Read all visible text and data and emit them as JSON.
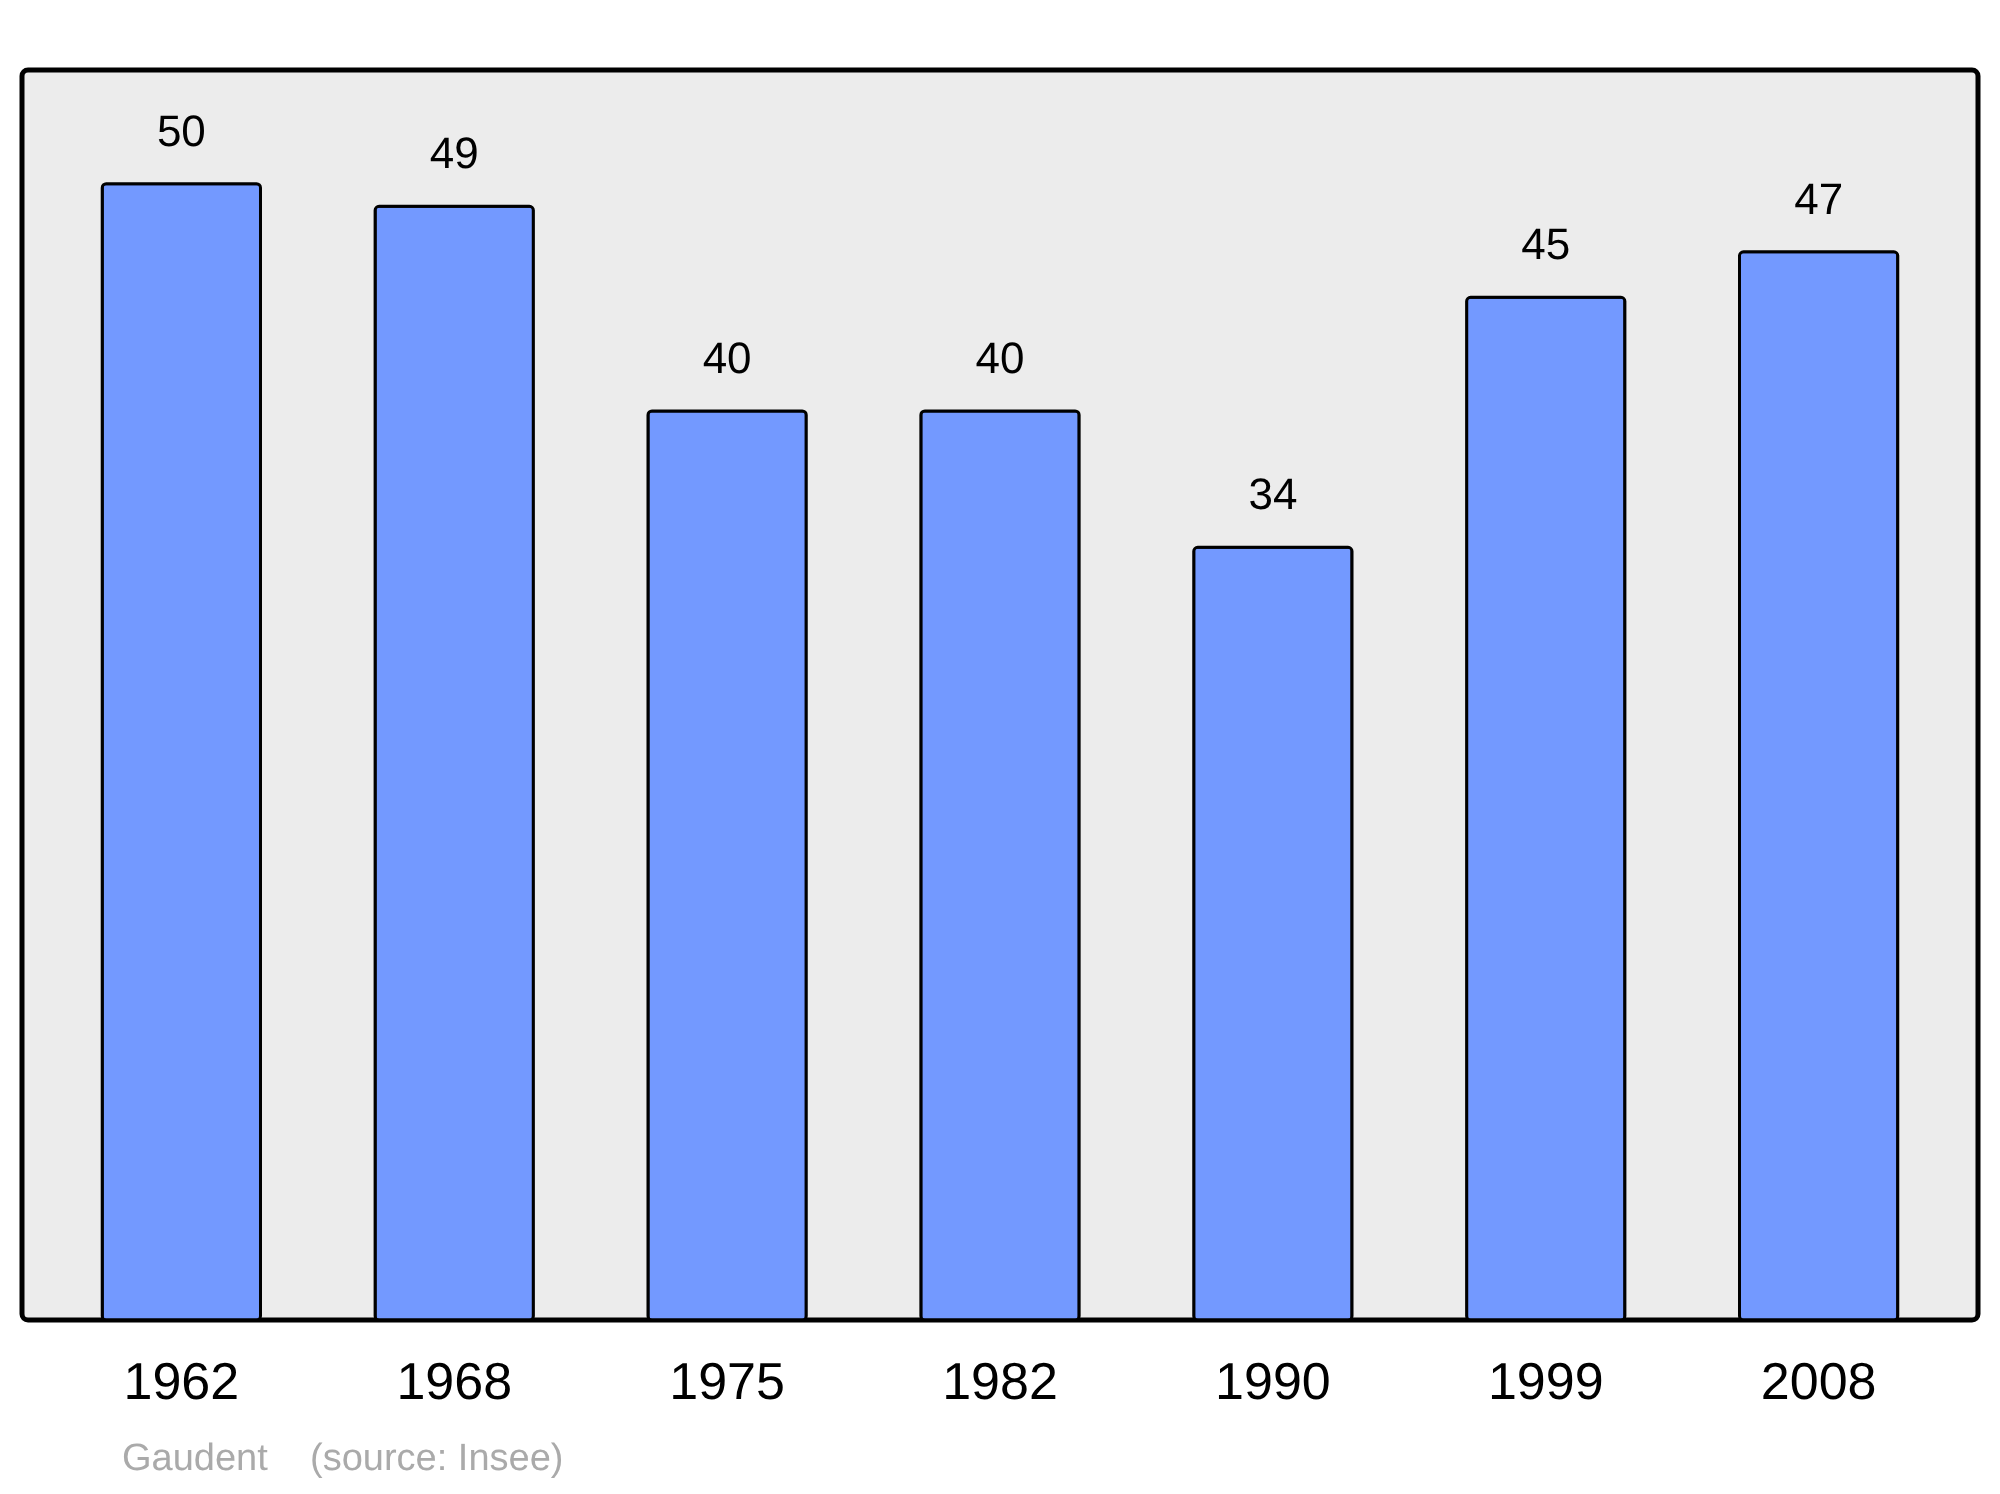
{
  "chart_data": {
    "type": "bar",
    "categories": [
      "1962",
      "1968",
      "1975",
      "1982",
      "1990",
      "1999",
      "2008"
    ],
    "values": [
      50,
      49,
      40,
      40,
      34,
      45,
      47
    ],
    "color": "#7399ff",
    "ylim": [
      0,
      55
    ],
    "data_labels": true,
    "tick_labels": "x",
    "annotations": [
      "Gaudent    (source: Insee)"
    ]
  }
}
